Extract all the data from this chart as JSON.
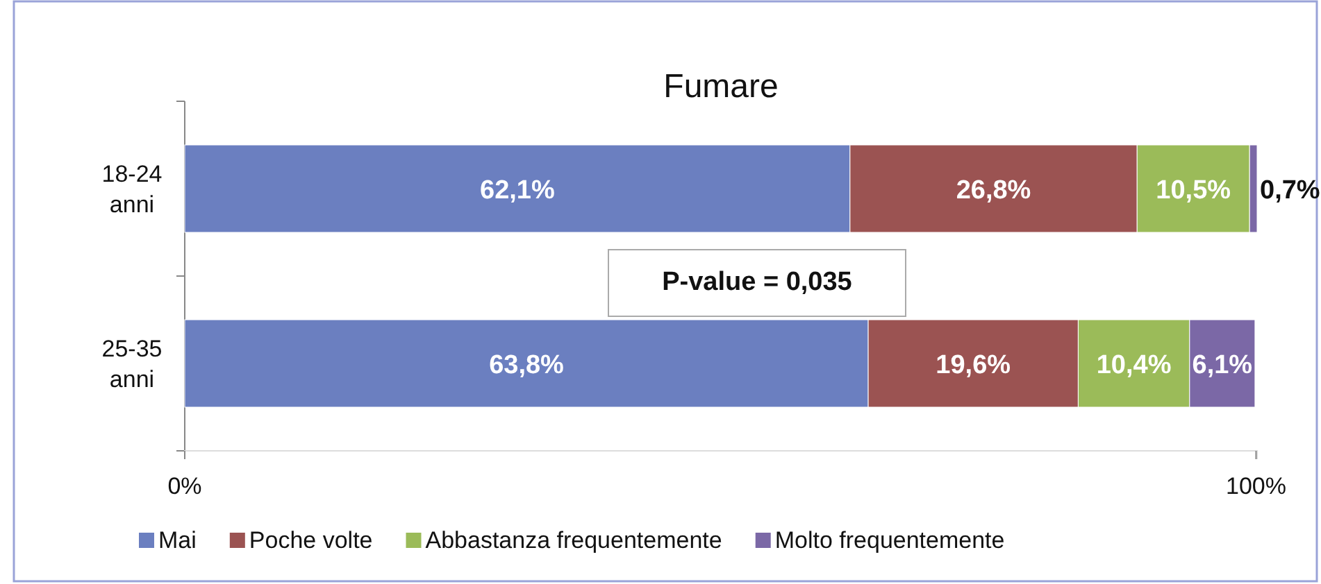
{
  "chart_data": {
    "type": "bar",
    "orientation": "horizontal",
    "stacked": true,
    "title": "Fumare",
    "categories": [
      "18-24 anni",
      "25-35 anni"
    ],
    "series": [
      {
        "name": "Mai",
        "color": "#6b7fc0",
        "values": [
          62.1,
          63.8
        ],
        "value_labels": [
          "62,1%",
          "63,8%"
        ]
      },
      {
        "name": "Poche volte",
        "color": "#9b5352",
        "values": [
          26.8,
          19.6
        ],
        "value_labels": [
          "26,8%",
          "19,6%"
        ]
      },
      {
        "name": "Abbastanza frequentemente",
        "color": "#9bbb59",
        "values": [
          10.5,
          10.4
        ],
        "value_labels": [
          "10,5%",
          "10,4%"
        ]
      },
      {
        "name": "Molto frequentemente",
        "color": "#7b68a6",
        "values": [
          0.7,
          6.1
        ],
        "value_labels": [
          "0,7%",
          "6,1%"
        ]
      }
    ],
    "xlim": [
      0,
      100.1
    ],
    "xticks": [
      {
        "value": 0,
        "label": "0%"
      },
      {
        "value": 100,
        "label": "100%"
      }
    ],
    "annotations": [
      "P-value = 0,035"
    ],
    "legend": "bottom",
    "grid": false
  }
}
